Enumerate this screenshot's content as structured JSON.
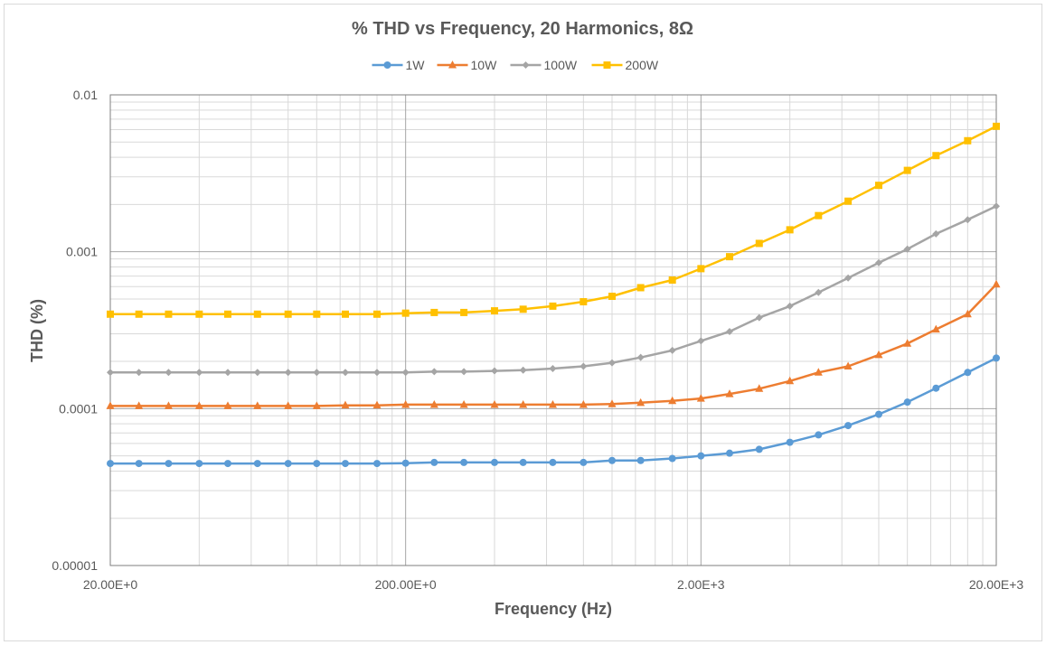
{
  "chart_data": {
    "type": "line",
    "title": "% THD vs Frequency, 20 Harmonics, 8Ω",
    "xlabel": "Frequency (Hz)",
    "ylabel": "THD (%)",
    "x_scale": "log",
    "y_scale": "log",
    "xlim": [
      20,
      20000
    ],
    "ylim": [
      1e-05,
      0.01
    ],
    "x_tick_values": [
      20,
      200,
      2000,
      20000
    ],
    "x_tick_labels": [
      "20.00E+0",
      "200.00E+0",
      "2.00E+3",
      "20.00E+3"
    ],
    "y_tick_values": [
      1e-05,
      0.0001,
      0.001,
      0.01
    ],
    "y_tick_labels": [
      "0.00001",
      "0.0001",
      "0.001",
      "0.01"
    ],
    "grid": {
      "major": true,
      "minor": true
    },
    "legend": "top-center",
    "x": [
      20,
      25,
      31.5,
      40,
      50,
      63,
      80,
      100,
      125,
      160,
      200,
      250,
      315,
      400,
      500,
      630,
      800,
      1000,
      1250,
      1600,
      2000,
      2500,
      3150,
      4000,
      5000,
      6300,
      8000,
      10000,
      12500,
      16000,
      20000
    ],
    "series": [
      {
        "name": "1W",
        "color": "#5b9bd5",
        "marker": "circle",
        "values": [
          4.47e-05,
          4.47e-05,
          4.47e-05,
          4.47e-05,
          4.47e-05,
          4.47e-05,
          4.47e-05,
          4.47e-05,
          4.47e-05,
          4.47e-05,
          4.49e-05,
          4.54e-05,
          4.54e-05,
          4.54e-05,
          4.54e-05,
          4.54e-05,
          4.54e-05,
          4.67e-05,
          4.67e-05,
          4.81e-05,
          5e-05,
          5.2e-05,
          5.5e-05,
          6.1e-05,
          6.8e-05,
          7.8e-05,
          9.2e-05,
          0.00011,
          0.000135,
          0.00017,
          0.00021
        ]
      },
      {
        "name": "10W",
        "color": "#ed7d31",
        "marker": "triangle",
        "values": [
          0.000104,
          0.000104,
          0.000104,
          0.000104,
          0.000104,
          0.000104,
          0.000104,
          0.000104,
          0.000105,
          0.000105,
          0.000106,
          0.000106,
          0.000106,
          0.000106,
          0.000106,
          0.000106,
          0.000106,
          0.000107,
          0.000109,
          0.000112,
          0.000116,
          0.000124,
          0.000134,
          0.00015,
          0.00017,
          0.000186,
          0.00022,
          0.00026,
          0.00032,
          0.0004,
          0.00062
        ]
      },
      {
        "name": "100W",
        "color": "#a5a5a5",
        "marker": "diamond",
        "values": [
          0.00017,
          0.00017,
          0.00017,
          0.00017,
          0.00017,
          0.00017,
          0.00017,
          0.00017,
          0.00017,
          0.00017,
          0.00017,
          0.000172,
          0.000172,
          0.000174,
          0.000176,
          0.00018,
          0.000186,
          0.000196,
          0.000212,
          0.000235,
          0.00027,
          0.00031,
          0.00038,
          0.00045,
          0.00055,
          0.00068,
          0.00085,
          0.00104,
          0.0013,
          0.0016,
          0.00195
        ]
      },
      {
        "name": "200W",
        "color": "#ffc000",
        "marker": "square",
        "values": [
          0.0004,
          0.0004,
          0.0004,
          0.0004,
          0.0004,
          0.0004,
          0.0004,
          0.0004,
          0.0004,
          0.0004,
          0.000406,
          0.00041,
          0.00041,
          0.00042,
          0.00043,
          0.00045,
          0.00048,
          0.00052,
          0.00059,
          0.00066,
          0.00078,
          0.00093,
          0.00113,
          0.00138,
          0.0017,
          0.0021,
          0.00265,
          0.0033,
          0.0041,
          0.0051,
          0.0063
        ]
      }
    ]
  }
}
